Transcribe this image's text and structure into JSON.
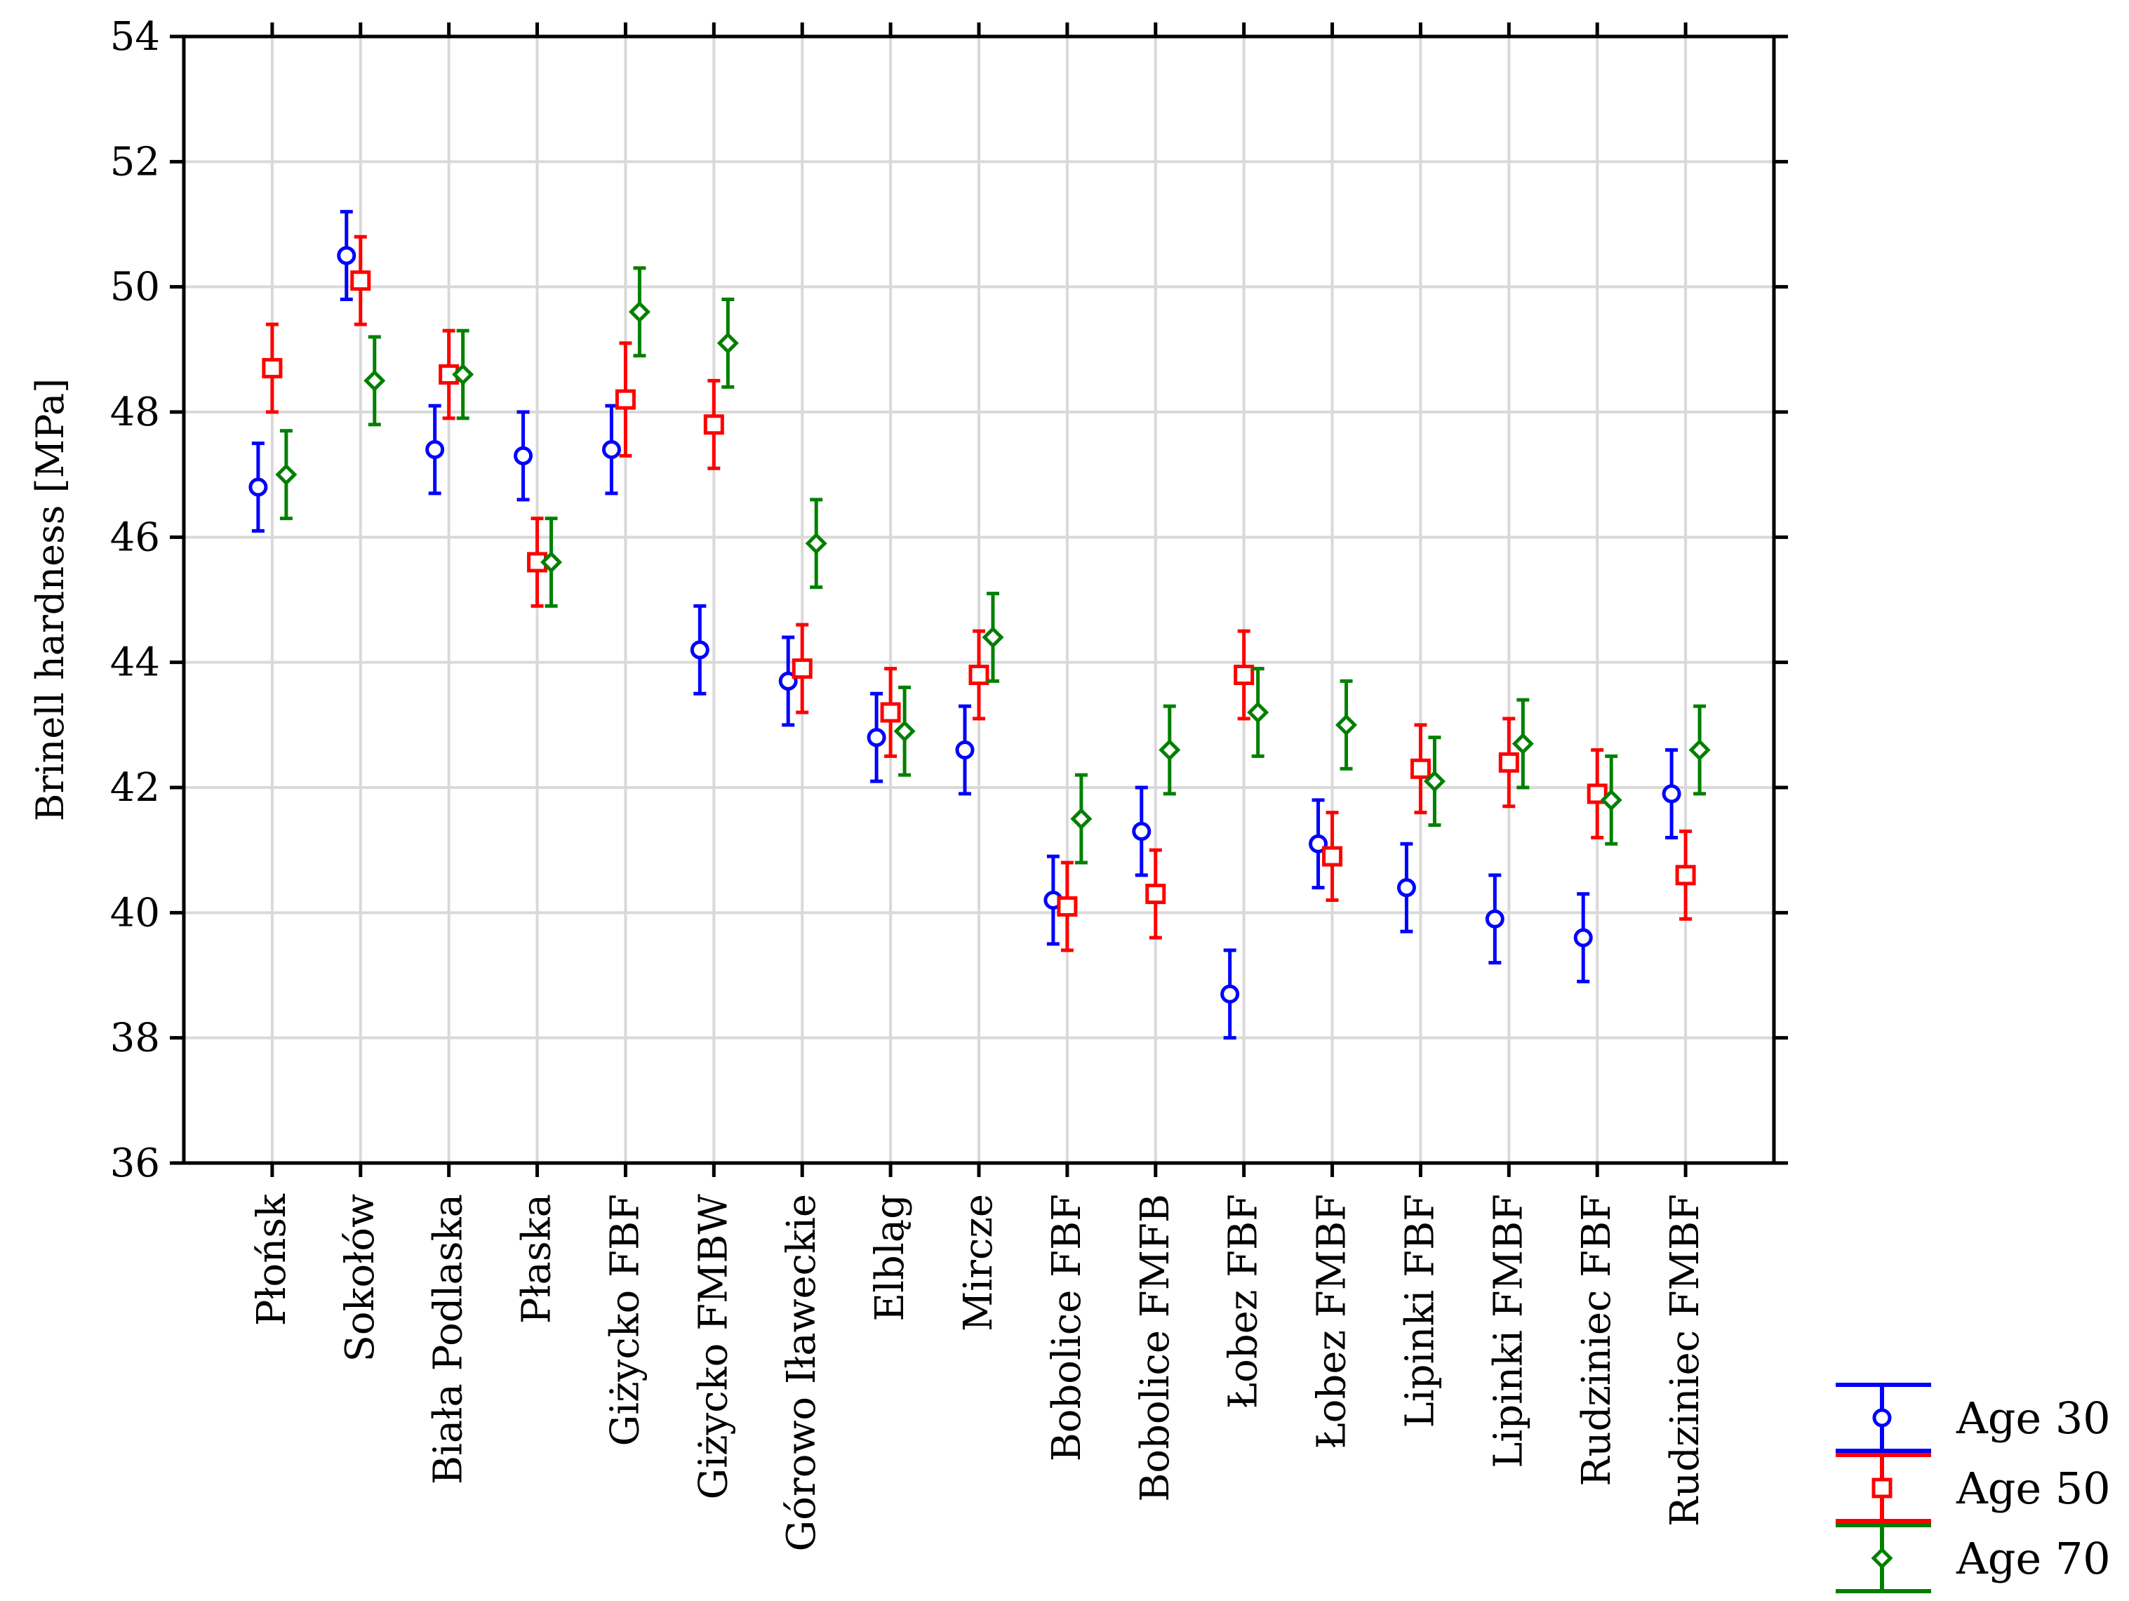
{
  "chart_data": {
    "type": "scatter",
    "title": "",
    "xlabel": "",
    "ylabel": "Brinell hardness [MPa]",
    "ylim": [
      36,
      54
    ],
    "yticks": [
      36,
      38,
      40,
      42,
      44,
      46,
      48,
      50,
      52,
      54
    ],
    "grid": true,
    "legend_position": "bottom-right, outside plot",
    "categories": [
      "Płońsk",
      "Sokołów",
      "Biała Podlaska",
      "Płaska",
      "Giżycko FBF",
      "Giżycko FMBW",
      "Górowo Iławeckie",
      "Elbląg",
      "Mircze",
      "Bobolice FBF",
      "Bobolice FMFB",
      "Łobez FBF",
      "Łobez FMBF",
      "Lipinki FBF",
      "Lipinki FMBF",
      "Rudziniec FBF",
      "Rudziniec FMBF"
    ],
    "series": [
      {
        "name": "Age 30",
        "color": "#0000ff",
        "marker": "circle",
        "values": [
          46.8,
          50.5,
          47.4,
          47.3,
          47.4,
          44.2,
          43.7,
          42.8,
          42.6,
          40.2,
          41.3,
          38.7,
          41.1,
          40.4,
          39.9,
          39.6,
          41.9
        ],
        "lower": [
          46.1,
          49.8,
          46.7,
          46.6,
          46.7,
          43.5,
          43.0,
          42.1,
          41.9,
          39.5,
          40.6,
          38.0,
          40.4,
          39.7,
          39.2,
          38.9,
          41.2
        ],
        "upper": [
          47.5,
          51.2,
          48.1,
          48.0,
          48.1,
          44.9,
          44.4,
          43.5,
          43.3,
          40.9,
          42.0,
          39.4,
          41.8,
          41.1,
          40.6,
          40.3,
          42.6
        ]
      },
      {
        "name": "Age 50",
        "color": "#ff0000",
        "marker": "square",
        "values": [
          48.7,
          50.1,
          48.6,
          45.6,
          48.2,
          47.8,
          43.9,
          43.2,
          43.8,
          40.1,
          40.3,
          43.8,
          40.9,
          42.3,
          42.4,
          41.9,
          40.6
        ],
        "lower": [
          48.0,
          49.4,
          47.9,
          44.9,
          47.3,
          47.1,
          43.2,
          42.5,
          43.1,
          39.4,
          39.6,
          43.1,
          40.2,
          41.6,
          41.7,
          41.2,
          39.9
        ],
        "upper": [
          49.4,
          50.8,
          49.3,
          46.3,
          49.1,
          48.5,
          44.6,
          43.9,
          44.5,
          40.8,
          41.0,
          44.5,
          41.6,
          43.0,
          43.1,
          42.6,
          41.3
        ]
      },
      {
        "name": "Age 70",
        "color": "#008000",
        "marker": "diamond",
        "values": [
          47.0,
          48.5,
          48.6,
          45.6,
          49.6,
          49.1,
          45.9,
          42.9,
          44.4,
          41.5,
          42.6,
          43.2,
          43.0,
          42.1,
          42.7,
          41.8,
          42.6
        ],
        "lower": [
          46.3,
          47.8,
          47.9,
          44.9,
          48.9,
          48.4,
          45.2,
          42.2,
          43.7,
          40.8,
          41.9,
          42.5,
          42.3,
          41.4,
          42.0,
          41.1,
          41.9
        ],
        "upper": [
          47.7,
          49.2,
          49.3,
          46.3,
          50.3,
          49.8,
          46.6,
          43.6,
          45.1,
          42.2,
          43.3,
          43.9,
          43.7,
          42.8,
          43.4,
          42.5,
          43.3
        ]
      }
    ]
  }
}
